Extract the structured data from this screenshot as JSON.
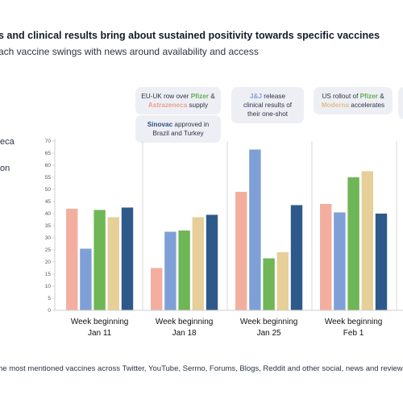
{
  "header": {
    "title": "s and clinical results bring about sustained positivity towards specific vaccines",
    "subtitle": "ach vaccine swings with news around availability and access"
  },
  "legend_fragments": [
    "eca",
    "on"
  ],
  "callouts": {
    "c1": {
      "pre": "EU-UK row over ",
      "b1": "Pfizer",
      "mid": " & ",
      "b2": "Astrazeneca",
      "post": " supply"
    },
    "c2": {
      "b1": "Sinovac",
      "post": " approved in Brazil and Turkey"
    },
    "c3": {
      "b1": "J&J",
      "post": " release clinical results of their one-shot"
    },
    "c4": {
      "pre": "US rollout of ",
      "b1": "Pfizer",
      "mid": " & ",
      "b2": "Moderna",
      "post": " accelerates"
    }
  },
  "footnote": "he most mentioned vaccines across Twitter, YouTube, Sermo, Forums, Blogs, Reddit and other social, news and review",
  "colors": {
    "astrazeneca": "#f4aea0",
    "jj": "#7fa0d6",
    "pfizer": "#6fb656",
    "moderna": "#e6cf99",
    "sinovac": "#2d5a8a",
    "axis": "#cfcfcf"
  },
  "chart_data": {
    "type": "bar",
    "categories": [
      [
        "Week beginning",
        "Jan 11"
      ],
      [
        "Week beginning",
        "Jan 18"
      ],
      [
        "Week beginning",
        "Jan 25"
      ],
      [
        "Week beginning",
        "Feb 1"
      ]
    ],
    "series": [
      {
        "color_key": "astrazeneca",
        "values": [
          42,
          17.5,
          49,
          44
        ]
      },
      {
        "color_key": "jj",
        "values": [
          25.5,
          32.5,
          66.5,
          40.5
        ]
      },
      {
        "color_key": "pfizer",
        "values": [
          41.5,
          33,
          21.5,
          55
        ]
      },
      {
        "color_key": "moderna",
        "values": [
          38.5,
          38.5,
          24,
          57.5
        ]
      },
      {
        "color_key": "sinovac",
        "values": [
          42.5,
          39.5,
          43.5,
          40
        ]
      }
    ],
    "yticks": [
      0,
      5,
      10,
      15,
      20,
      25,
      30,
      35,
      40,
      45,
      50,
      55,
      60,
      65,
      70
    ],
    "ylim": [
      0,
      70
    ]
  }
}
